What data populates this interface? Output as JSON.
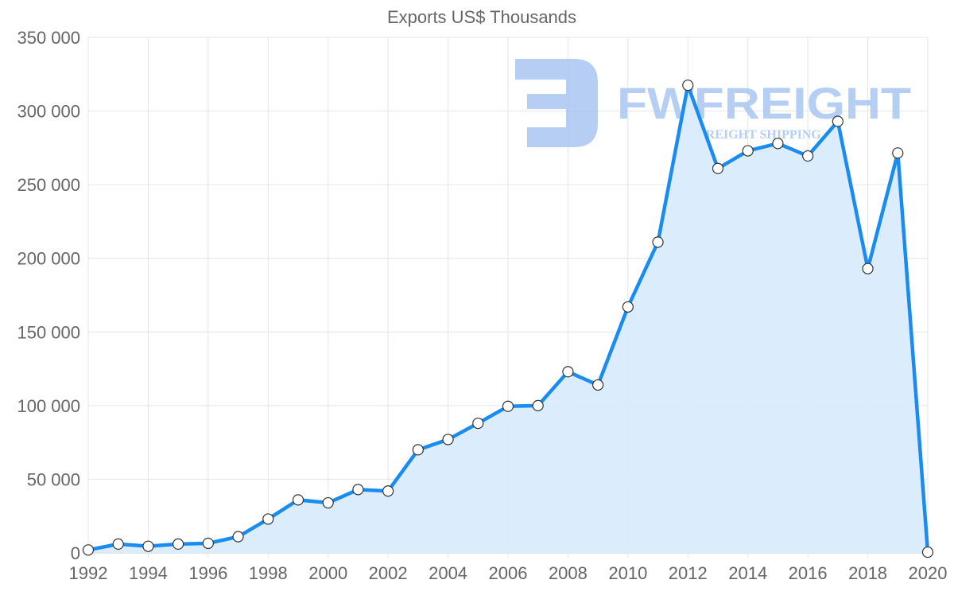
{
  "chart_data": {
    "type": "line",
    "title": "Exports US$ Thousands",
    "xlabel": "",
    "ylabel": "",
    "x": [
      1992,
      1993,
      1994,
      1995,
      1996,
      1997,
      1998,
      1999,
      2000,
      2001,
      2002,
      2003,
      2004,
      2005,
      2006,
      2007,
      2008,
      2009,
      2010,
      2011,
      2012,
      2013,
      2014,
      2015,
      2016,
      2017,
      2018,
      2019,
      2020
    ],
    "series": [
      {
        "name": "Exports US$ Thousands",
        "values": [
          2000,
          6000,
          4500,
          6000,
          6500,
          11000,
          23000,
          36000,
          34000,
          43000,
          42000,
          70000,
          77000,
          88000,
          99500,
          100000,
          123000,
          114000,
          167000,
          211000,
          317500,
          261000,
          273000,
          278000,
          269500,
          293000,
          193000,
          271500,
          500
        ],
        "color": "#1a8cf0",
        "fill": "#d9ecfd"
      }
    ],
    "xlim": [
      1992,
      2020
    ],
    "ylim": [
      0,
      350000
    ],
    "xticks": [
      "1992",
      "1994",
      "1996",
      "1998",
      "2000",
      "2002",
      "2004",
      "2006",
      "2008",
      "2010",
      "2012",
      "2014",
      "2016",
      "2018",
      "2020"
    ],
    "yticks": [
      "0",
      "50 000",
      "100 000",
      "150 000",
      "200 000",
      "250 000",
      "300 000",
      "350 000"
    ],
    "grid": true,
    "legend": "none"
  },
  "watermark": {
    "brand": "FWFREIGHT",
    "tagline": "FREIGHT SHIPPING",
    "color": "#a9c6f2"
  }
}
